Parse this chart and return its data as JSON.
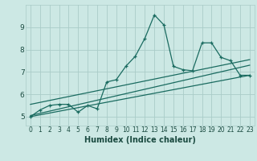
{
  "xlabel": "Humidex (Indice chaleur)",
  "bg_color": "#cce8e4",
  "grid_color": "#aaccc8",
  "line_color": "#1a6b60",
  "xlim": [
    -0.5,
    23.5
  ],
  "ylim": [
    4.6,
    10.0
  ],
  "xticks": [
    0,
    1,
    2,
    3,
    4,
    5,
    6,
    7,
    8,
    9,
    10,
    11,
    12,
    13,
    14,
    15,
    16,
    17,
    18,
    19,
    20,
    21,
    22,
    23
  ],
  "yticks": [
    5,
    6,
    7,
    8,
    9
  ],
  "series1_x": [
    0,
    1,
    2,
    3,
    4,
    5,
    6,
    7,
    8,
    9,
    10,
    11,
    12,
    13,
    14,
    15,
    16,
    17,
    18,
    19,
    20,
    21,
    22,
    23
  ],
  "series1_y": [
    5.0,
    5.3,
    5.5,
    5.55,
    5.55,
    5.2,
    5.5,
    5.35,
    6.55,
    6.65,
    7.25,
    7.7,
    8.5,
    9.55,
    9.1,
    7.25,
    7.1,
    7.05,
    8.3,
    8.3,
    7.65,
    7.5,
    6.85,
    6.85
  ],
  "series2_x": [
    0,
    23
  ],
  "series2_y": [
    5.05,
    7.3
  ],
  "series3_x": [
    0,
    23
  ],
  "series3_y": [
    5.55,
    7.55
  ],
  "series4_x": [
    0,
    23
  ],
  "series4_y": [
    5.0,
    6.85
  ],
  "xlabel_fontsize": 7,
  "tick_fontsize": 5.5,
  "ytick_fontsize": 6.5
}
